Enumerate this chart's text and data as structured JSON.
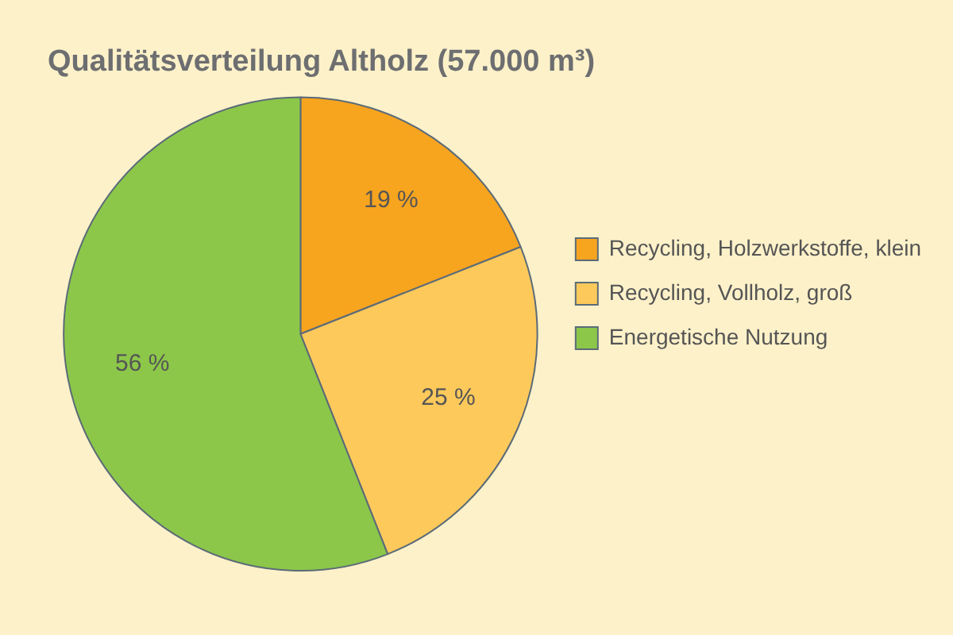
{
  "chart_data": {
    "type": "pie",
    "title": "Qualitätsverteilung Altholz (57.000 m³)",
    "categories": [
      "Recycling, Holzwerkstoffe, klein",
      "Recycling, Vollholz, groß",
      "Energetische Nutzung"
    ],
    "values": [
      19,
      25,
      56
    ],
    "colors": [
      "#f7a41f",
      "#fdc95b",
      "#8cc74a"
    ],
    "value_labels": [
      "19 %",
      "25 %",
      "56 %"
    ],
    "legend": "right"
  }
}
